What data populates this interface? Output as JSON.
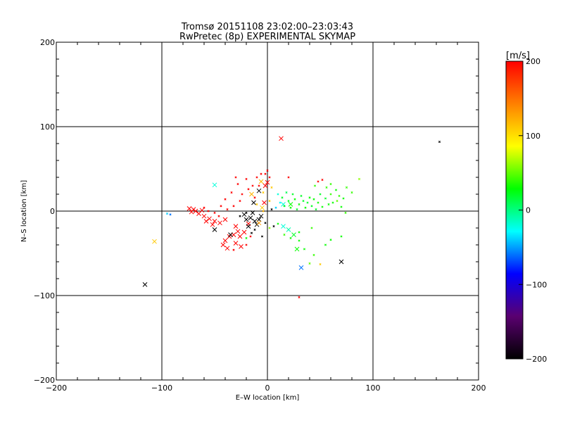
{
  "chart_data": {
    "type": "scatter",
    "title": "Tromsø 20151108 23:02:00–23:03:43",
    "subtitle": "RwPretec (8p) EXPERIMENTAL SKYMAP",
    "xlabel": "E–W location [km]",
    "ylabel": "N–S location [km]",
    "xlim": [
      -200,
      200
    ],
    "ylim": [
      -200,
      200
    ],
    "xticks": [
      "−200",
      "−100",
      "0",
      "100",
      "200"
    ],
    "yticks": [
      "−200",
      "−100",
      "0",
      "100",
      "200"
    ],
    "grid": true,
    "colorbar": {
      "label": "[m/s]",
      "range": [
        -200,
        200
      ],
      "ticks": [
        "200",
        "100",
        "0",
        "−100",
        "−200"
      ],
      "colormap": [
        "#000000",
        "#5a0070",
        "#0000ff",
        "#00ffff",
        "#00ff00",
        "#ffff00",
        "#ff8000",
        "#ff0000"
      ]
    },
    "series": [
      {
        "marker": "x-large",
        "points": [
          {
            "x": 13,
            "y": 86,
            "v": 200
          },
          {
            "x": -50,
            "y": 31,
            "v": -20
          },
          {
            "x": -107,
            "y": -36,
            "v": 110
          },
          {
            "x": -116,
            "y": -87,
            "v": -200
          },
          {
            "x": 32,
            "y": -67,
            "v": -60
          },
          {
            "x": 70,
            "y": -60,
            "v": -200
          },
          {
            "x": 20,
            "y": -22,
            "v": -10
          },
          {
            "x": 15,
            "y": -18,
            "v": -20
          },
          {
            "x": -15,
            "y": 20,
            "v": 120
          },
          {
            "x": -13,
            "y": 10,
            "v": -200
          },
          {
            "x": -50,
            "y": -22,
            "v": -200
          },
          {
            "x": -70,
            "y": 2,
            "v": 200
          },
          {
            "x": -74,
            "y": 3,
            "v": 200
          },
          {
            "x": -68,
            "y": 0,
            "v": 200
          },
          {
            "x": -65,
            "y": -3,
            "v": 200
          },
          {
            "x": -72,
            "y": -1,
            "v": 200
          },
          {
            "x": -60,
            "y": -6,
            "v": 200
          },
          {
            "x": -55,
            "y": -9,
            "v": 200
          },
          {
            "x": -50,
            "y": -12,
            "v": 200
          },
          {
            "x": -45,
            "y": -14,
            "v": 200
          },
          {
            "x": -40,
            "y": -10,
            "v": 200
          },
          {
            "x": -58,
            "y": -12,
            "v": 200
          },
          {
            "x": -52,
            "y": -16,
            "v": 200
          },
          {
            "x": -62,
            "y": 1,
            "v": 200
          },
          {
            "x": -30,
            "y": -18,
            "v": 200
          },
          {
            "x": -28,
            "y": -24,
            "v": 200
          },
          {
            "x": -32,
            "y": -28,
            "v": 200
          },
          {
            "x": -26,
            "y": -30,
            "v": 200
          },
          {
            "x": -36,
            "y": -30,
            "v": 200
          },
          {
            "x": -40,
            "y": -35,
            "v": 200
          },
          {
            "x": -42,
            "y": -40,
            "v": 200
          },
          {
            "x": -30,
            "y": -38,
            "v": 200
          },
          {
            "x": -25,
            "y": -42,
            "v": 200
          },
          {
            "x": -38,
            "y": -44,
            "v": 200
          },
          {
            "x": -22,
            "y": -25,
            "v": 200
          },
          {
            "x": -18,
            "y": -15,
            "v": 200
          },
          {
            "x": -20,
            "y": -10,
            "v": -200
          },
          {
            "x": -16,
            "y": -8,
            "v": -200
          },
          {
            "x": -12,
            "y": -12,
            "v": -200
          },
          {
            "x": -8,
            "y": -10,
            "v": -200
          },
          {
            "x": -22,
            "y": -4,
            "v": -200
          },
          {
            "x": -14,
            "y": -2,
            "v": -200
          },
          {
            "x": -10,
            "y": -16,
            "v": -200
          },
          {
            "x": -35,
            "y": -28,
            "v": -200
          },
          {
            "x": -6,
            "y": -6,
            "v": -200
          },
          {
            "x": -18,
            "y": -18,
            "v": -200
          },
          {
            "x": -8,
            "y": 24,
            "v": -200
          },
          {
            "x": -5,
            "y": 4,
            "v": 110
          },
          {
            "x": -3,
            "y": 10,
            "v": 200
          },
          {
            "x": 0,
            "y": 34,
            "v": 200
          },
          {
            "x": -2,
            "y": 30,
            "v": 200
          },
          {
            "x": -6,
            "y": 35,
            "v": 120
          },
          {
            "x": 15,
            "y": 8,
            "v": -20
          },
          {
            "x": 22,
            "y": 8,
            "v": 30
          },
          {
            "x": 25,
            "y": -28,
            "v": 20
          },
          {
            "x": 28,
            "y": -45,
            "v": 30
          },
          {
            "x": -8,
            "y": -14,
            "v": 130
          }
        ]
      },
      {
        "marker": "dot-small",
        "points": [
          {
            "x": 163,
            "y": 82,
            "v": -200
          },
          {
            "x": 87,
            "y": 38,
            "v": 60
          },
          {
            "x": 80,
            "y": 22,
            "v": 40
          },
          {
            "x": 75,
            "y": 28,
            "v": 40
          },
          {
            "x": 72,
            "y": 15,
            "v": 30
          },
          {
            "x": 70,
            "y": 5,
            "v": 30
          },
          {
            "x": 68,
            "y": 18,
            "v": 40
          },
          {
            "x": 65,
            "y": 25,
            "v": 30
          },
          {
            "x": 62,
            "y": 10,
            "v": 30
          },
          {
            "x": 60,
            "y": 20,
            "v": 40
          },
          {
            "x": 58,
            "y": 8,
            "v": 30
          },
          {
            "x": 55,
            "y": 15,
            "v": 20
          },
          {
            "x": 52,
            "y": 5,
            "v": 30
          },
          {
            "x": 50,
            "y": 20,
            "v": 20
          },
          {
            "x": 48,
            "y": 10,
            "v": 30
          },
          {
            "x": 46,
            "y": 2,
            "v": 20
          },
          {
            "x": 44,
            "y": 14,
            "v": 30
          },
          {
            "x": 42,
            "y": 6,
            "v": 20
          },
          {
            "x": 40,
            "y": 16,
            "v": 30
          },
          {
            "x": 38,
            "y": 10,
            "v": 20
          },
          {
            "x": 36,
            "y": 4,
            "v": 30
          },
          {
            "x": 34,
            "y": 12,
            "v": 20
          },
          {
            "x": 32,
            "y": 18,
            "v": 20
          },
          {
            "x": 30,
            "y": 8,
            "v": 30
          },
          {
            "x": 28,
            "y": 2,
            "v": 20
          },
          {
            "x": 26,
            "y": 14,
            "v": 30
          },
          {
            "x": 24,
            "y": 20,
            "v": 20
          },
          {
            "x": 22,
            "y": 4,
            "v": 30
          },
          {
            "x": 20,
            "y": 12,
            "v": 20
          },
          {
            "x": 18,
            "y": 22,
            "v": 10
          },
          {
            "x": 16,
            "y": 6,
            "v": 20
          },
          {
            "x": 14,
            "y": 16,
            "v": 20
          },
          {
            "x": 12,
            "y": 10,
            "v": -30
          },
          {
            "x": 10,
            "y": 20,
            "v": -20
          },
          {
            "x": 8,
            "y": 4,
            "v": -40
          },
          {
            "x": 52,
            "y": 37,
            "v": 200
          },
          {
            "x": 48,
            "y": 35,
            "v": 200
          },
          {
            "x": 45,
            "y": 30,
            "v": 40
          },
          {
            "x": 56,
            "y": 28,
            "v": 40
          },
          {
            "x": 60,
            "y": 32,
            "v": 40
          },
          {
            "x": 66,
            "y": 12,
            "v": 50
          },
          {
            "x": 74,
            "y": -2,
            "v": 40
          },
          {
            "x": 70,
            "y": -30,
            "v": 30
          },
          {
            "x": 60,
            "y": -34,
            "v": 30
          },
          {
            "x": 55,
            "y": -40,
            "v": 30
          },
          {
            "x": 50,
            "y": -63,
            "v": 110
          },
          {
            "x": 44,
            "y": -52,
            "v": 40
          },
          {
            "x": 40,
            "y": -62,
            "v": 50
          },
          {
            "x": 35,
            "y": -45,
            "v": 30
          },
          {
            "x": 30,
            "y": -35,
            "v": 30
          },
          {
            "x": 30,
            "y": -102,
            "v": 200
          },
          {
            "x": 16,
            "y": -28,
            "v": 40
          },
          {
            "x": 10,
            "y": -15,
            "v": 30
          },
          {
            "x": -92,
            "y": -4,
            "v": -60
          },
          {
            "x": -95,
            "y": -3,
            "v": -40
          },
          {
            "x": -30,
            "y": 40,
            "v": 200
          },
          {
            "x": -28,
            "y": 32,
            "v": 200
          },
          {
            "x": -20,
            "y": 38,
            "v": 200
          },
          {
            "x": -18,
            "y": 26,
            "v": 200
          },
          {
            "x": -14,
            "y": 30,
            "v": 200
          },
          {
            "x": -10,
            "y": 40,
            "v": 200
          },
          {
            "x": -6,
            "y": 44,
            "v": 200
          },
          {
            "x": -2,
            "y": 44,
            "v": 200
          },
          {
            "x": 0,
            "y": 48,
            "v": 200
          },
          {
            "x": 2,
            "y": 40,
            "v": 200
          },
          {
            "x": -24,
            "y": 20,
            "v": 200
          },
          {
            "x": -34,
            "y": 22,
            "v": 200
          },
          {
            "x": -40,
            "y": 14,
            "v": 200
          },
          {
            "x": -44,
            "y": 6,
            "v": 200
          },
          {
            "x": -38,
            "y": 2,
            "v": 200
          },
          {
            "x": -32,
            "y": 6,
            "v": 200
          },
          {
            "x": -26,
            "y": 12,
            "v": 200
          },
          {
            "x": -12,
            "y": 16,
            "v": 200
          },
          {
            "x": -8,
            "y": 30,
            "v": 200
          },
          {
            "x": 4,
            "y": 28,
            "v": 110
          },
          {
            "x": 2,
            "y": 12,
            "v": 110
          },
          {
            "x": -4,
            "y": 22,
            "v": 110
          },
          {
            "x": -10,
            "y": 8,
            "v": 110
          },
          {
            "x": -20,
            "y": -2,
            "v": -200
          },
          {
            "x": -26,
            "y": -6,
            "v": -200
          },
          {
            "x": -12,
            "y": -22,
            "v": -200
          },
          {
            "x": -5,
            "y": -30,
            "v": -200
          },
          {
            "x": -15,
            "y": -26,
            "v": -200
          },
          {
            "x": -2,
            "y": -14,
            "v": -200
          },
          {
            "x": 6,
            "y": -18,
            "v": -200
          },
          {
            "x": 4,
            "y": 2,
            "v": -200
          },
          {
            "x": -4,
            "y": 0,
            "v": 120
          },
          {
            "x": -20,
            "y": -32,
            "v": 30
          },
          {
            "x": 2,
            "y": -20,
            "v": 60
          },
          {
            "x": -50,
            "y": -2,
            "v": 200
          },
          {
            "x": -60,
            "y": 4,
            "v": 200
          },
          {
            "x": -56,
            "y": 0,
            "v": 200
          },
          {
            "x": -46,
            "y": -6,
            "v": 200
          },
          {
            "x": -20,
            "y": -40,
            "v": 200
          },
          {
            "x": -32,
            "y": -46,
            "v": 200
          },
          {
            "x": -16,
            "y": -30,
            "v": 200
          },
          {
            "x": 20,
            "y": 40,
            "v": 200
          },
          {
            "x": 30,
            "y": -25,
            "v": 30
          },
          {
            "x": 42,
            "y": -20,
            "v": 40
          },
          {
            "x": 22,
            "y": -32,
            "v": 30
          }
        ]
      }
    ]
  }
}
